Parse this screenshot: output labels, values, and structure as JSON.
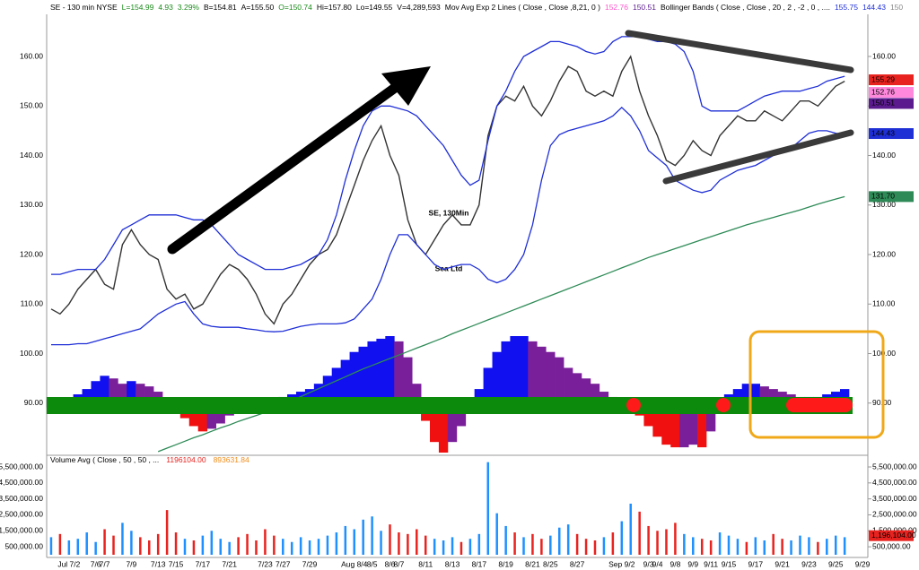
{
  "header": {
    "items": [
      {
        "text": "SE - 130 min  NYSE",
        "color": "#000000"
      },
      {
        "text": "L=154.99",
        "color": "#1a8a1a"
      },
      {
        "text": "4.93",
        "color": "#1a8a1a"
      },
      {
        "text": "3.29%",
        "color": "#1a8a1a"
      },
      {
        "text": "B=154.81",
        "color": "#000000"
      },
      {
        "text": "A=155.50",
        "color": "#000000"
      },
      {
        "text": "O=150.74",
        "color": "#1a8a1a"
      },
      {
        "text": "Hi=157.80",
        "color": "#000000"
      },
      {
        "text": "Lo=149.55",
        "color": "#000000"
      },
      {
        "text": "V=4,289,593",
        "color": "#000000"
      },
      {
        "text": "Mov Avg Exp 2 Lines ( Close , Close ,8,21, 0 )",
        "color": "#000000"
      },
      {
        "text": "152.76",
        "color": "#ff55cc"
      },
      {
        "text": "150.51",
        "color": "#5b1a8e"
      },
      {
        "text": "Bollinger Bands ( Close , Close , 20 , 2 , -2 , 0 , ....",
        "color": "#000000"
      },
      {
        "text": "155.75",
        "color": "#1f2fd6"
      },
      {
        "text": "144.43",
        "color": "#1f2fd6"
      },
      {
        "text": "150",
        "color": "#888888"
      }
    ]
  },
  "chart_data": [
    {
      "type": "line",
      "watermark": [
        "SE, 130Min",
        "Sea Ltd"
      ],
      "categories": [
        null,
        null,
        "Jul 7/2",
        null,
        null,
        "7/6",
        "7/7",
        null,
        null,
        "7/9",
        null,
        null,
        "7/13",
        null,
        "7/15",
        null,
        null,
        "7/17",
        null,
        null,
        "7/21",
        null,
        null,
        null,
        "7/23",
        null,
        "7/27",
        null,
        null,
        "7/29",
        null,
        null,
        null,
        null,
        "Aug 8/4",
        null,
        "8/5",
        null,
        "8/6",
        "8/7",
        null,
        null,
        "8/11",
        null,
        null,
        "8/13",
        null,
        null,
        "8/17",
        null,
        null,
        "8/19",
        null,
        null,
        "8/21",
        null,
        "8/25",
        null,
        null,
        "8/27",
        null,
        null,
        null,
        null,
        "Sep 9/2",
        null,
        null,
        "9/3",
        "9/4",
        null,
        "9/8",
        null,
        "9/9",
        null,
        "9/11",
        null,
        "9/15",
        null,
        null,
        "9/17",
        null,
        null,
        "9/21",
        null,
        null,
        "9/23",
        null,
        null,
        "9/25",
        null,
        null,
        "9/29"
      ],
      "series": [
        {
          "color": "#333333",
          "values": [
            109,
            108,
            110,
            113,
            115,
            117,
            114,
            113,
            122,
            125,
            122,
            120,
            119,
            113,
            111,
            112,
            109,
            110,
            113,
            116,
            118,
            117,
            115,
            112,
            108,
            106,
            110,
            112,
            115,
            118,
            120,
            121,
            124,
            129,
            134,
            139,
            143,
            146,
            140,
            136,
            127,
            122,
            120,
            123,
            126,
            128,
            126,
            126,
            130,
            144,
            150,
            152,
            151,
            154,
            150,
            148,
            151,
            155,
            158,
            157,
            153,
            152,
            153,
            152,
            157,
            160,
            153,
            148,
            144,
            139,
            138,
            140,
            143,
            141,
            140,
            144,
            146,
            148,
            147,
            147,
            149,
            148,
            147,
            149,
            151,
            151,
            150,
            152,
            154,
            155,
            null,
            null
          ]
        },
        {
          "color": "#1f2fd6",
          "values": [
            116,
            116,
            116.5,
            117,
            117,
            117,
            119,
            122,
            125,
            126,
            127,
            128,
            128,
            128,
            128,
            127.5,
            127,
            127,
            126,
            124,
            122,
            120,
            119,
            118,
            117,
            117,
            117,
            117.5,
            118,
            119,
            120,
            123,
            128,
            135,
            141,
            146,
            149,
            150,
            150,
            149.5,
            149,
            148,
            146,
            144,
            142,
            139,
            136,
            134,
            135,
            143,
            150,
            153,
            157,
            160,
            161,
            162,
            163,
            163,
            162.5,
            162,
            161,
            160.5,
            161,
            163,
            164,
            164,
            164,
            163.5,
            163,
            163,
            162.5,
            161,
            157,
            150,
            149,
            149,
            149,
            149,
            150,
            151,
            152,
            152.5,
            153,
            153,
            153,
            153.5,
            154,
            155,
            155.5,
            156,
            null,
            null
          ]
        },
        {
          "color": "#1f2fd6",
          "values": [
            101.8,
            101.8,
            101.8,
            102,
            102,
            102.5,
            103,
            103.5,
            104,
            104.5,
            105,
            106.5,
            108,
            109,
            110,
            110.5,
            108,
            106,
            105.5,
            105.3,
            105.3,
            105.3,
            105,
            104.8,
            104.5,
            104.4,
            104.5,
            105,
            105.5,
            105.8,
            106,
            106,
            106,
            106.2,
            107,
            109,
            111,
            115,
            120,
            124,
            124,
            122,
            120,
            118,
            117,
            117.5,
            118,
            118,
            117,
            115,
            114.3,
            115,
            117,
            120,
            126,
            135,
            142,
            144.2,
            145,
            145.5,
            146,
            146.5,
            147,
            148,
            149.7,
            148,
            145,
            141,
            139.5,
            138,
            135,
            134,
            133,
            132.5,
            133,
            135,
            136,
            137,
            137.5,
            138,
            139,
            140,
            140.6,
            141.5,
            143,
            144.5,
            145,
            145,
            144.5,
            144.2,
            null,
            null
          ]
        },
        {
          "color": "#2e8b57",
          "values": [
            null,
            null,
            null,
            null,
            null,
            null,
            null,
            null,
            null,
            null,
            null,
            null,
            80.2,
            80.9,
            81.6,
            82.3,
            83,
            83.6,
            84.3,
            85,
            85.6,
            86.3,
            86.9,
            87.5,
            88.1,
            88.9,
            89.7,
            90.5,
            91.3,
            92.1,
            92.9,
            93.7,
            94.5,
            95.3,
            96.1,
            96.9,
            97.6,
            98.3,
            99,
            99.7,
            100.4,
            101.1,
            101.8,
            102.5,
            103.2,
            104,
            104.7,
            105.4,
            106.1,
            106.8,
            107.5,
            108.2,
            108.9,
            109.6,
            110.3,
            111,
            111.7,
            112.4,
            113.1,
            113.8,
            114.5,
            115.2,
            115.9,
            116.6,
            117.3,
            118,
            118.7,
            119.4,
            120,
            120.6,
            121.2,
            121.8,
            122.4,
            123,
            123.6,
            124.2,
            124.8,
            125.4,
            126,
            126.5,
            127,
            127.5,
            128,
            128.5,
            129,
            129.6,
            130.2,
            130.7,
            131.2,
            131.7,
            null,
            null
          ]
        }
      ],
      "ylim": [
        80,
        170.5
      ],
      "yticks": [
        {
          "value": 90,
          "label": "90.00"
        },
        {
          "value": 100,
          "label": "100.00"
        },
        {
          "value": 110,
          "label": "110.00"
        },
        {
          "value": 120,
          "label": "120.00"
        },
        {
          "value": 130,
          "label": "130.00"
        },
        {
          "value": 140,
          "label": "140.00"
        },
        {
          "value": 150,
          "label": "150.00"
        },
        {
          "value": 160,
          "label": "160.00"
        }
      ],
      "last_labels": [
        {
          "value": 155.29,
          "label": "155.29",
          "color": "#e8231f"
        },
        {
          "value": 152.76,
          "label": "152.76",
          "color": "#ff88dd"
        },
        {
          "value": 150.51,
          "label": "150.51",
          "color": "#5b1a8e"
        },
        {
          "value": 144.43,
          "label": "144.43",
          "color": "#1f2fd6"
        },
        {
          "value": 131.7,
          "label": "131.70",
          "color": "#2e8b57"
        }
      ]
    },
    {
      "type": "bar",
      "color_rule": "momentum",
      "colors": {
        "rising_positive": "#1010f0",
        "falling_positive": "#7a1f9a",
        "falling_negative": "#f01010",
        "rising_negative": "#7a1f9a"
      },
      "values": [
        -0.15,
        -0.1,
        -0.05,
        0.1,
        0.2,
        0.35,
        0.45,
        0.4,
        0.3,
        0.35,
        0.3,
        0.25,
        0.15,
        -0.05,
        -0.2,
        -0.35,
        -0.5,
        -0.6,
        -0.55,
        -0.45,
        -0.3,
        -0.2,
        -0.1,
        -0.05,
        -0.02,
        0.02,
        0.05,
        0.1,
        0.15,
        0.2,
        0.3,
        0.45,
        0.6,
        0.75,
        0.9,
        1.0,
        1.1,
        1.15,
        1.2,
        1.1,
        0.8,
        0.3,
        -0.4,
        -0.8,
        -1,
        -0.8,
        -0.5,
        -0.2,
        0.2,
        0.6,
        0.9,
        1.1,
        1.2,
        1.2,
        1.1,
        1.0,
        0.9,
        0.8,
        0.6,
        0.5,
        0.4,
        0.3,
        0.15,
        0.05,
        -0.05,
        -0.1,
        -0.3,
        -0.5,
        -0.7,
        -0.85,
        -0.9,
        -0.9,
        -0.85,
        -0.9,
        -0.6,
        -0.2,
        0.1,
        0.2,
        0.3,
        0.3,
        0.25,
        0.2,
        0.15,
        0.1,
        0.05,
        0.05,
        0.05,
        0.1,
        0.15,
        0.2,
        null,
        null
      ],
      "ylim": [
        -1,
        1.2
      ]
    },
    {
      "type": "bar",
      "title": "Volume Avg ( Close , 50 , 50 , ...",
      "title_values": [
        {
          "label": "1196104.00",
          "color": "#e8231f"
        },
        {
          "label": "893631.84",
          "color": "#f08c1a"
        }
      ],
      "color_rule": "price-direction",
      "colors": {
        "up": "#1e90ff",
        "down": "#e8231f"
      },
      "values": [
        1100000,
        1300000,
        900000,
        1000000,
        1400000,
        800000,
        1600000,
        1200000,
        2000000,
        1500000,
        1100000,
        900000,
        1300000,
        2800000,
        1400000,
        1000000,
        900000,
        1200000,
        1500000,
        1000000,
        800000,
        1100000,
        1300000,
        900000,
        1600000,
        1200000,
        1000000,
        800000,
        1100000,
        900000,
        1000000,
        1200000,
        1400000,
        1800000,
        1600000,
        2200000,
        2400000,
        1500000,
        1900000,
        1400000,
        1300000,
        1600000,
        1200000,
        1000000,
        900000,
        1100000,
        800000,
        1000000,
        1300000,
        5800000,
        2600000,
        1800000,
        1400000,
        1100000,
        1300000,
        1000000,
        1200000,
        1700000,
        1900000,
        1300000,
        1000000,
        900000,
        1100000,
        1400000,
        2100000,
        3200000,
        2700000,
        1800000,
        1500000,
        1600000,
        2000000,
        1300000,
        1100000,
        1000000,
        900000,
        1400000,
        1200000,
        1000000,
        800000,
        1100000,
        900000,
        1300000,
        1000000,
        900000,
        1200000,
        1100000,
        800000,
        1000000,
        1200000,
        1100000,
        null,
        null
      ],
      "ylim": [
        0,
        5950000
      ],
      "yticks": [
        {
          "value": 500000,
          "label": "500,000.00"
        },
        {
          "value": 1500000,
          "label": "1,500,000.00"
        },
        {
          "value": 2500000,
          "label": "2,500,000.00"
        },
        {
          "value": 3500000,
          "label": "3,500,000.00"
        },
        {
          "value": 4500000,
          "label": "4,500,000.00"
        },
        {
          "value": 5500000,
          "label": "5,500,000.00"
        }
      ],
      "last_labels": [
        {
          "value": 1196104,
          "label": "1,196,104.00",
          "color": "#e8231f"
        }
      ]
    }
  ]
}
